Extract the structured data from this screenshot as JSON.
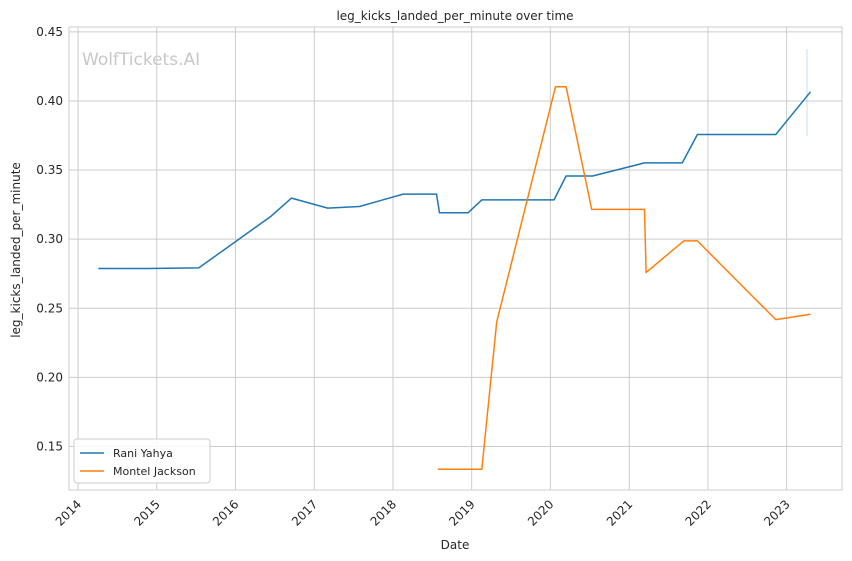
{
  "chart_data": {
    "type": "line",
    "title": "leg_kicks_landed_per_minute over time",
    "xlabel": "Date",
    "ylabel": "leg_kicks_landed_per_minute",
    "watermark": "WolfTickets.AI",
    "xlim": [
      "2013-11-20",
      "2023-09-15"
    ],
    "ylim": [
      0.1185,
      0.4535
    ],
    "x_ticks": [
      "2014",
      "2015",
      "2016",
      "2017",
      "2018",
      "2019",
      "2020",
      "2021",
      "2022",
      "2023"
    ],
    "y_ticks": [
      0.15,
      0.2,
      0.25,
      0.3,
      0.35,
      0.4,
      0.45
    ],
    "grid": true,
    "legend_position": "bottom-left",
    "colors": {
      "Rani Yahya": "#1f77b4",
      "Montel Jackson": "#ff7f0e",
      "grid": "#cccccc",
      "axes": "#cccccc"
    },
    "series": [
      {
        "name": "Rani Yahya",
        "color": "#1f77b4",
        "points": [
          [
            "2014-04-05",
            0.2788
          ],
          [
            "2014-11-15",
            0.2788
          ],
          [
            "2015-07-15",
            0.2792
          ],
          [
            "2016-06-15",
            0.3167
          ],
          [
            "2016-09-17",
            0.3297
          ],
          [
            "2017-03-04",
            0.3225
          ],
          [
            "2017-07-29",
            0.3236
          ],
          [
            "2018-02-18",
            0.3326
          ],
          [
            "2018-07-22",
            0.3326
          ],
          [
            "2018-08-05",
            0.3191
          ],
          [
            "2018-12-15",
            0.3191
          ],
          [
            "2019-02-17",
            0.3284
          ],
          [
            "2020-01-18",
            0.3284
          ],
          [
            "2020-03-14",
            0.3457
          ],
          [
            "2020-07-15",
            0.3457
          ],
          [
            "2021-03-13",
            0.3552
          ],
          [
            "2021-09-04",
            0.3552
          ],
          [
            "2021-11-13",
            0.3757
          ],
          [
            "2022-11-12",
            0.3757
          ],
          [
            "2023-04-22",
            0.4066
          ]
        ]
      },
      {
        "name": "Montel Jackson",
        "color": "#ff7f0e",
        "points": [
          [
            "2018-07-28",
            0.1335
          ],
          [
            "2019-02-17",
            0.1335
          ],
          [
            "2019-04-27",
            0.24
          ],
          [
            "2020-01-25",
            0.4102
          ],
          [
            "2020-03-14",
            0.4102
          ],
          [
            "2020-07-11",
            0.3215
          ],
          [
            "2021-03-13",
            0.3215
          ],
          [
            "2021-03-20",
            0.2759
          ],
          [
            "2021-09-11",
            0.2987
          ],
          [
            "2021-11-13",
            0.2987
          ],
          [
            "2022-11-12",
            0.2418
          ],
          [
            "2023-04-22",
            0.2457
          ]
        ]
      }
    ]
  }
}
